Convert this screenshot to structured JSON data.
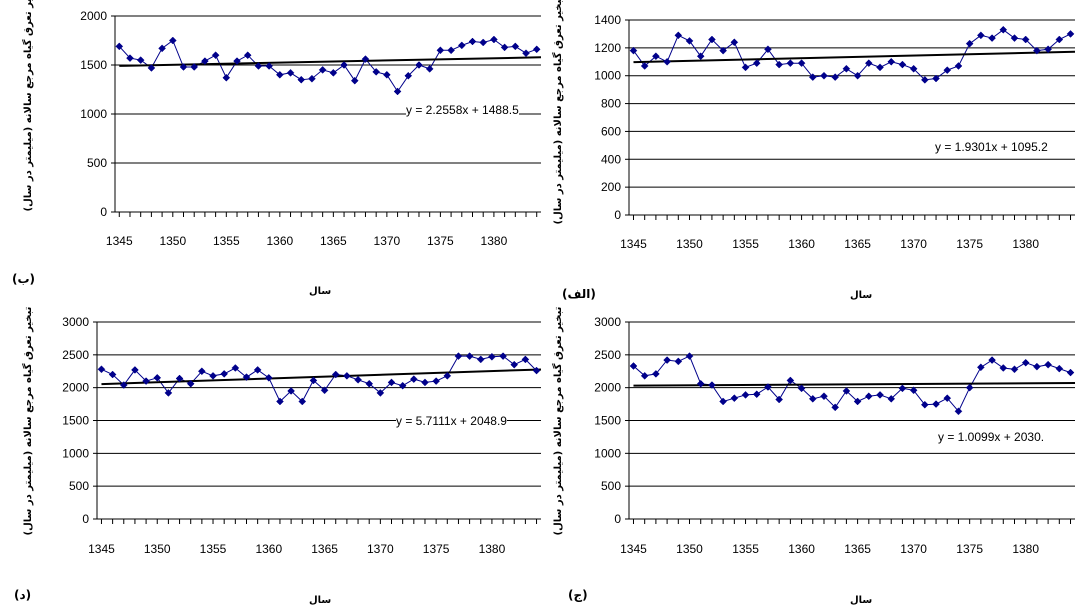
{
  "colors": {
    "series": "#00008b",
    "trend": "#000000",
    "grid": "#000000"
  },
  "chart_data": [
    {
      "panel_label": "(ب)",
      "type": "line",
      "ylabel": "تبخیر تعرق گیاه مرجع سالانه (میلیمتر در سال)",
      "xlabel": "سال",
      "equation": "y = 2.2558x + 1488.5",
      "ylim": [
        0,
        2000
      ],
      "yticks": [
        "0",
        "500",
        "1000",
        "1500",
        "2000"
      ],
      "xlim": [
        1344.6,
        1384.4
      ],
      "xticks": [
        "1345",
        "1350",
        "1355",
        "1360",
        "1365",
        "1370",
        "1375",
        "1380"
      ],
      "trend": {
        "slope": 2.2558,
        "intercept": 1488.5
      },
      "series": [
        {
          "x": [
            1345,
            1346,
            1347,
            1348,
            1349,
            1350,
            1351,
            1352,
            1353,
            1354,
            1355,
            1356,
            1357,
            1358,
            1359,
            1360,
            1361,
            1362,
            1363,
            1364,
            1365,
            1366,
            1367,
            1368,
            1369,
            1370,
            1371,
            1372,
            1373,
            1374,
            1375,
            1376,
            1377,
            1378,
            1379,
            1380,
            1381,
            1382,
            1383,
            1384
          ],
          "y": [
            1690,
            1570,
            1550,
            1470,
            1670,
            1750,
            1480,
            1480,
            1540,
            1600,
            1370,
            1540,
            1600,
            1490,
            1490,
            1400,
            1420,
            1350,
            1360,
            1450,
            1420,
            1500,
            1340,
            1560,
            1430,
            1400,
            1230,
            1390,
            1500,
            1460,
            1650,
            1650,
            1700,
            1740,
            1730,
            1760,
            1680,
            1690,
            1620,
            1660
          ]
        }
      ]
    },
    {
      "panel_label": "(الف)",
      "type": "line",
      "ylabel": "تبخیر تعرق گیاه مرجع سالانه (میلیمتر در سال)",
      "xlabel": "سال",
      "equation": "y = 1.9301x + 1095.2",
      "ylim": [
        0,
        1400
      ],
      "yticks": [
        "0",
        "200",
        "400",
        "600",
        "800",
        "1000",
        "1200",
        "1400"
      ],
      "xlim": [
        1344.6,
        1384.4
      ],
      "xticks": [
        "1345",
        "1350",
        "1355",
        "1360",
        "1365",
        "1370",
        "1375",
        "1380"
      ],
      "trend": {
        "slope": 1.9301,
        "intercept": 1095.2
      },
      "series": [
        {
          "x": [
            1345,
            1346,
            1347,
            1348,
            1349,
            1350,
            1351,
            1352,
            1353,
            1354,
            1355,
            1356,
            1357,
            1358,
            1359,
            1360,
            1361,
            1362,
            1363,
            1364,
            1365,
            1366,
            1367,
            1368,
            1369,
            1370,
            1371,
            1372,
            1373,
            1374,
            1375,
            1376,
            1377,
            1378,
            1379,
            1380,
            1381,
            1382,
            1383,
            1384
          ],
          "y": [
            1180,
            1070,
            1140,
            1100,
            1290,
            1250,
            1140,
            1260,
            1180,
            1240,
            1060,
            1090,
            1190,
            1080,
            1090,
            1090,
            990,
            1000,
            990,
            1050,
            1000,
            1090,
            1060,
            1100,
            1080,
            1050,
            970,
            980,
            1040,
            1070,
            1230,
            1290,
            1270,
            1330,
            1270,
            1260,
            1180,
            1190,
            1260,
            1300
          ]
        }
      ]
    },
    {
      "panel_label": "(د)",
      "type": "line",
      "ylabel": "تبخیر تعرق گیاه مرجع سالانه (میلیمتر در سال)",
      "xlabel": "سال",
      "equation": "y = 5.7111x + 2048.9",
      "ylim": [
        0,
        3000
      ],
      "yticks": [
        "0",
        "500",
        "1000",
        "1500",
        "2000",
        "2500",
        "3000"
      ],
      "xlim": [
        1344.6,
        1384.4
      ],
      "xticks": [
        "1345",
        "1350",
        "1355",
        "1360",
        "1365",
        "1370",
        "1375",
        "1380"
      ],
      "trend": {
        "slope": 5.7111,
        "intercept": 2048.9
      },
      "series": [
        {
          "x": [
            1345,
            1346,
            1347,
            1348,
            1349,
            1350,
            1351,
            1352,
            1353,
            1354,
            1355,
            1356,
            1357,
            1358,
            1359,
            1360,
            1361,
            1362,
            1363,
            1364,
            1365,
            1366,
            1367,
            1368,
            1369,
            1370,
            1371,
            1372,
            1373,
            1374,
            1375,
            1376,
            1377,
            1378,
            1379,
            1380,
            1381,
            1382,
            1383,
            1384
          ],
          "y": [
            2280,
            2200,
            2040,
            2270,
            2100,
            2150,
            1920,
            2140,
            2060,
            2250,
            2180,
            2210,
            2300,
            2160,
            2270,
            2150,
            1790,
            1950,
            1790,
            2110,
            1960,
            2200,
            2180,
            2120,
            2060,
            1920,
            2080,
            2030,
            2130,
            2080,
            2100,
            2180,
            2480,
            2480,
            2430,
            2470,
            2480,
            2350,
            2430,
            2260
          ]
        }
      ]
    },
    {
      "panel_label": "(ج)",
      "type": "line",
      "ylabel": "تبخیر تعرق گیاه مرجع سالانه (میلیمتر در سال)",
      "xlabel": "سال",
      "equation": "y = 1.0099x + 2030.",
      "ylim": [
        0,
        3000
      ],
      "yticks": [
        "0",
        "500",
        "1000",
        "1500",
        "2000",
        "2500",
        "3000"
      ],
      "xlim": [
        1344.6,
        1384.4
      ],
      "xticks": [
        "1345",
        "1350",
        "1355",
        "1360",
        "1365",
        "1370",
        "1375",
        "1380"
      ],
      "trend": {
        "slope": 1.0099,
        "intercept": 2030
      },
      "series": [
        {
          "x": [
            1345,
            1346,
            1347,
            1348,
            1349,
            1350,
            1351,
            1352,
            1353,
            1354,
            1355,
            1356,
            1357,
            1358,
            1359,
            1360,
            1361,
            1362,
            1363,
            1364,
            1365,
            1366,
            1367,
            1368,
            1369,
            1370,
            1371,
            1372,
            1373,
            1374,
            1375,
            1376,
            1377,
            1378,
            1379,
            1380,
            1381,
            1382,
            1383,
            1384
          ],
          "y": [
            2330,
            2180,
            2210,
            2420,
            2400,
            2480,
            2060,
            2040,
            1790,
            1840,
            1890,
            1900,
            2010,
            1820,
            2110,
            1990,
            1830,
            1870,
            1700,
            1950,
            1790,
            1870,
            1890,
            1830,
            1990,
            1960,
            1740,
            1750,
            1840,
            1640,
            2000,
            2310,
            2420,
            2300,
            2280,
            2380,
            2320,
            2350,
            2290,
            2230
          ]
        }
      ]
    }
  ]
}
